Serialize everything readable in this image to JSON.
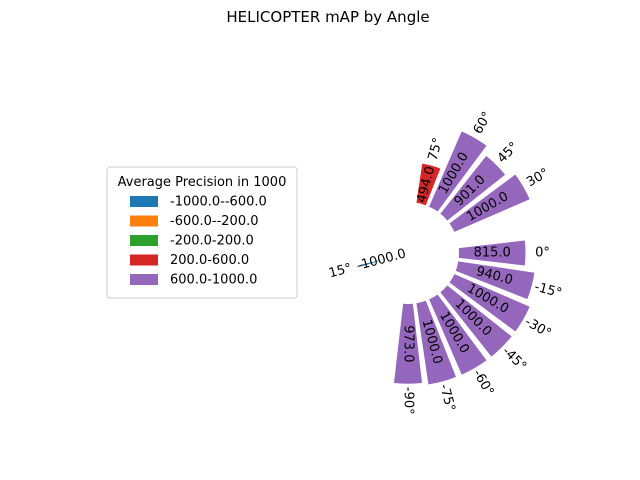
{
  "chart_data": {
    "type": "bar",
    "subtype": "polar",
    "title": "HELICOPTER mAP by Angle",
    "categories": [
      "-90°",
      "-75°",
      "-60°",
      "-45°",
      "-30°",
      "-15°",
      "0°",
      "15°",
      "30°",
      "45°",
      "60°",
      "75°"
    ],
    "angles": [
      -90,
      -75,
      -60,
      -45,
      -30,
      -15,
      0,
      15,
      30,
      45,
      60,
      75
    ],
    "values": [
      973.0,
      1000.0,
      1000.0,
      1000.0,
      1000.0,
      940.0,
      815.0,
      -1000.0,
      1000.0,
      901.0,
      1000.0,
      494.0
    ],
    "value_labels": [
      "973.0",
      "1000.0",
      "1000.0",
      "1000.0",
      "1000.0",
      "940.0",
      "815.0",
      "-1000.0",
      "1000.0",
      "901.0",
      "1000.0",
      "494.0"
    ],
    "radial_range": [
      -1000,
      1000
    ],
    "legend": {
      "title": "Average Precision in 1000",
      "placement": "center-left",
      "entries": [
        {
          "label": "-1000.0--600.0",
          "color": "#1f77b4"
        },
        {
          "label": "-600.0--200.0",
          "color": "#ff7f0e"
        },
        {
          "label": "-200.0-200.0",
          "color": "#2ca02c"
        },
        {
          "label": "200.0-600.0",
          "color": "#d62728"
        },
        {
          "label": "600.0-1000.0",
          "color": "#9467bd"
        }
      ]
    },
    "grid": false
  }
}
